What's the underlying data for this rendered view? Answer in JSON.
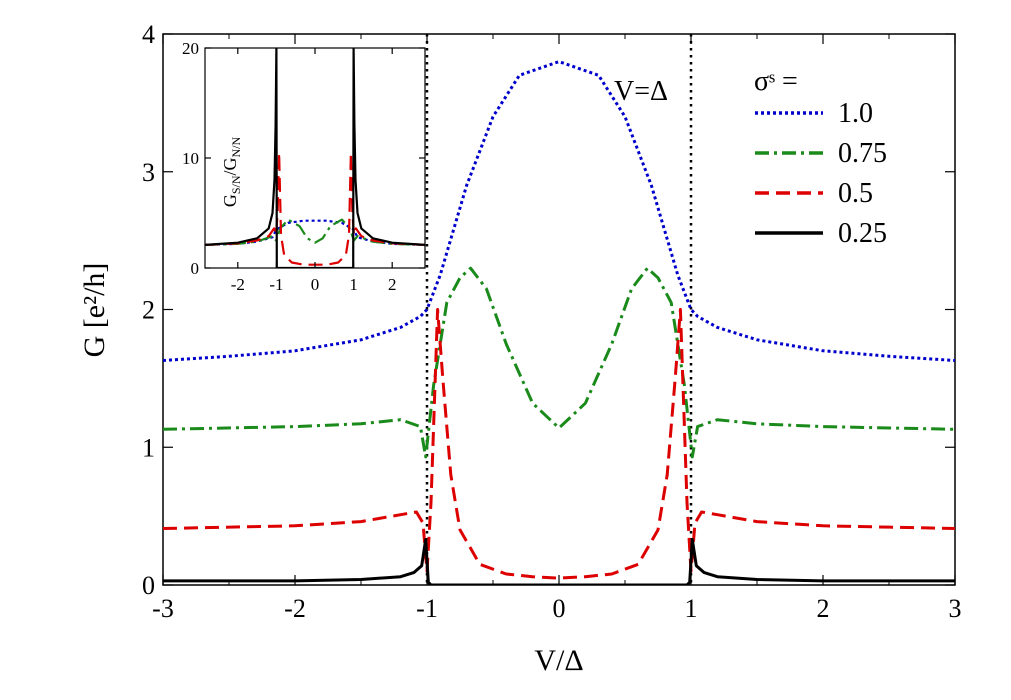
{
  "chart_data": [
    {
      "type": "line",
      "xlabel": "V/Δ",
      "ylabel": "G [e²/h]",
      "xlim": [
        -3,
        3
      ],
      "ylim": [
        0,
        4
      ],
      "xticks": [
        -3,
        -2,
        -1,
        0,
        1,
        2,
        3
      ],
      "yticks": [
        0,
        1,
        2,
        3,
        4
      ],
      "xtick_labels": [
        "-3",
        "-2",
        "-1",
        "0",
        "1",
        "2",
        "3"
      ],
      "ytick_labels": [
        "0",
        "1",
        "2",
        "3",
        "4"
      ],
      "grid": false,
      "annotation": "V=Δ",
      "vlines": [
        -1,
        1
      ],
      "legend_title": "σˢ =",
      "legend_position": "top-right",
      "series": [
        {
          "name": "1.0",
          "color": "#0000cc",
          "dash": "dotted",
          "x": [
            -3,
            -2.5,
            -2,
            -1.5,
            -1.2,
            -1.05,
            -1,
            -0.9,
            -0.7,
            -0.5,
            -0.3,
            0,
            0.3,
            0.5,
            0.7,
            0.9,
            1,
            1.05,
            1.2,
            1.5,
            2,
            2.5,
            3
          ],
          "y": [
            1.63,
            1.66,
            1.7,
            1.78,
            1.87,
            1.95,
            2.0,
            2.25,
            2.9,
            3.4,
            3.7,
            3.8,
            3.7,
            3.4,
            2.9,
            2.25,
            2.0,
            1.95,
            1.87,
            1.78,
            1.7,
            1.66,
            1.63
          ]
        },
        {
          "name": "0.75",
          "color": "#1a8a1a",
          "dash": "dash-dot",
          "x": [
            -3,
            -2,
            -1.5,
            -1.2,
            -1.05,
            -1.01,
            -0.95,
            -0.85,
            -0.75,
            -0.67,
            -0.55,
            -0.4,
            -0.2,
            0,
            0.2,
            0.4,
            0.55,
            0.67,
            0.75,
            0.85,
            0.95,
            1.01,
            1.05,
            1.2,
            1.5,
            2,
            3
          ],
          "y": [
            1.13,
            1.15,
            1.17,
            1.2,
            1.15,
            0.93,
            1.45,
            2.05,
            2.23,
            2.3,
            2.15,
            1.75,
            1.32,
            1.14,
            1.32,
            1.75,
            2.15,
            2.3,
            2.23,
            2.05,
            1.45,
            0.93,
            1.15,
            1.2,
            1.17,
            1.15,
            1.13
          ]
        },
        {
          "name": "0.5",
          "color": "#dd0000",
          "dash": "dashed",
          "x": [
            -3,
            -2,
            -1.5,
            -1.2,
            -1.08,
            -1.03,
            -1.0,
            -0.97,
            -0.92,
            -0.88,
            -0.82,
            -0.75,
            -0.6,
            -0.4,
            -0.2,
            0,
            0.2,
            0.4,
            0.6,
            0.75,
            0.82,
            0.88,
            0.92,
            0.97,
            1.0,
            1.03,
            1.08,
            1.2,
            1.5,
            2,
            3
          ],
          "y": [
            0.41,
            0.43,
            0.46,
            0.51,
            0.53,
            0.45,
            0.1,
            0.6,
            2.0,
            1.5,
            0.8,
            0.4,
            0.15,
            0.08,
            0.06,
            0.05,
            0.06,
            0.08,
            0.15,
            0.4,
            0.8,
            1.5,
            2.0,
            0.6,
            0.1,
            0.45,
            0.53,
            0.51,
            0.46,
            0.43,
            0.41
          ]
        },
        {
          "name": "0.25",
          "color": "#000000",
          "dash": "solid",
          "x": [
            -3,
            -2,
            -1.5,
            -1.2,
            -1.1,
            -1.04,
            -1.01,
            -0.99,
            -0.97,
            -0.5,
            0,
            0.5,
            0.97,
            0.99,
            1.01,
            1.04,
            1.1,
            1.2,
            1.5,
            2,
            3
          ],
          "y": [
            0.03,
            0.03,
            0.04,
            0.06,
            0.09,
            0.14,
            0.33,
            0.02,
            0.0,
            0.0,
            0.0,
            0.0,
            0.0,
            0.02,
            0.33,
            0.14,
            0.09,
            0.06,
            0.04,
            0.03,
            0.03
          ]
        }
      ]
    },
    {
      "type": "line",
      "inset": true,
      "ylabel": "G_S/N/G_N/N",
      "ylabel_main": "G",
      "ylabel_sub1": "S/N",
      "ylabel_sep": "/G",
      "ylabel_sub2": "N/N",
      "xlim": [
        -2.85,
        2.85
      ],
      "ylim": [
        0,
        20
      ],
      "xticks": [
        -2,
        -1,
        0,
        1,
        2
      ],
      "yticks": [
        0,
        10,
        20
      ],
      "xtick_labels": [
        "-2",
        "-1",
        "0",
        "1",
        "2"
      ],
      "ytick_labels": [
        "0",
        "10",
        "20"
      ],
      "series": [
        {
          "name": "1.0",
          "color": "#0000cc",
          "dash": "dotted",
          "x": [
            -2.85,
            -2,
            -1.5,
            -1.1,
            -1,
            -0.7,
            -0.3,
            0,
            0.3,
            0.7,
            1,
            1.1,
            1.5,
            2,
            2.85
          ],
          "y": [
            2.1,
            2.2,
            2.4,
            2.8,
            3.5,
            4.1,
            4.3,
            4.3,
            4.3,
            4.1,
            3.5,
            2.8,
            2.4,
            2.2,
            2.1
          ]
        },
        {
          "name": "0.75",
          "color": "#1a8a1a",
          "dash": "dash-dot",
          "x": [
            -2.85,
            -2,
            -1.5,
            -1.1,
            -1.01,
            -0.9,
            -0.7,
            -0.4,
            -0.2,
            0,
            0.2,
            0.4,
            0.7,
            0.9,
            1.01,
            1.1,
            1.5,
            2,
            2.85
          ],
          "y": [
            2.1,
            2.2,
            2.4,
            2.9,
            2.5,
            3.6,
            4.4,
            3.8,
            2.7,
            2.3,
            2.7,
            3.8,
            4.4,
            3.6,
            2.5,
            2.9,
            2.4,
            2.2,
            2.1
          ]
        },
        {
          "name": "0.5",
          "color": "#dd0000",
          "dash": "dashed",
          "x": [
            -2.85,
            -2,
            -1.5,
            -1.2,
            -1.06,
            -1.01,
            -0.97,
            -0.93,
            -0.88,
            -0.8,
            -0.6,
            -0.3,
            0,
            0.3,
            0.6,
            0.8,
            0.88,
            0.93,
            0.97,
            1.01,
            1.06,
            1.2,
            1.5,
            2,
            2.85
          ],
          "y": [
            2.1,
            2.25,
            2.5,
            2.9,
            3.6,
            3.0,
            5.0,
            10.5,
            3.0,
            1.2,
            0.5,
            0.3,
            0.3,
            0.3,
            0.5,
            1.2,
            3.0,
            10.5,
            5.0,
            3.0,
            3.6,
            2.9,
            2.5,
            2.25,
            2.1
          ]
        },
        {
          "name": "0.25",
          "color": "#000000",
          "dash": "solid",
          "x": [
            -2.85,
            -2,
            -1.5,
            -1.2,
            -1.1,
            -1.05,
            -1.02,
            -1.0,
            -0.99,
            -0.5,
            0,
            0.5,
            0.99,
            1.0,
            1.02,
            1.05,
            1.1,
            1.2,
            1.5,
            2,
            2.85
          ],
          "y": [
            2.1,
            2.3,
            2.7,
            3.6,
            5.0,
            8.0,
            13.0,
            20.0,
            0.0,
            0.0,
            0.0,
            0.0,
            0.0,
            20.0,
            13.0,
            8.0,
            5.0,
            3.6,
            2.7,
            2.3,
            2.1
          ]
        }
      ]
    }
  ]
}
